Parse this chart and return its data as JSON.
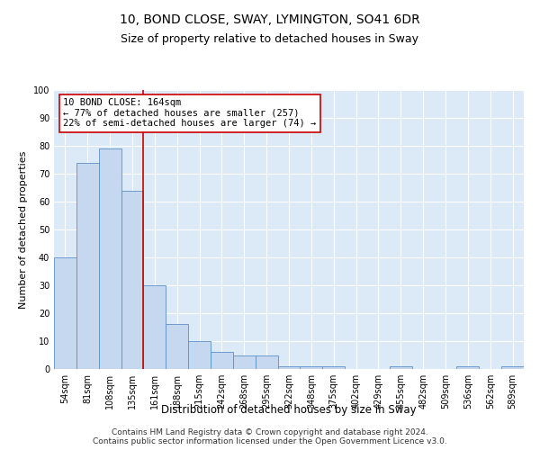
{
  "title": "10, BOND CLOSE, SWAY, LYMINGTON, SO41 6DR",
  "subtitle": "Size of property relative to detached houses in Sway",
  "xlabel": "Distribution of detached houses by size in Sway",
  "ylabel": "Number of detached properties",
  "bar_color": "#c5d8f0",
  "bar_edge_color": "#5b8fc9",
  "plot_bg_color": "#dce9f7",
  "categories": [
    "54sqm",
    "81sqm",
    "108sqm",
    "135sqm",
    "161sqm",
    "188sqm",
    "215sqm",
    "242sqm",
    "268sqm",
    "295sqm",
    "322sqm",
    "348sqm",
    "375sqm",
    "402sqm",
    "429sqm",
    "455sqm",
    "482sqm",
    "509sqm",
    "536sqm",
    "562sqm",
    "589sqm"
  ],
  "values": [
    40,
    74,
    79,
    64,
    30,
    16,
    10,
    6,
    5,
    5,
    1,
    1,
    1,
    0,
    0,
    1,
    0,
    0,
    1,
    0,
    1
  ],
  "vline_x_idx": 4,
  "vline_color": "#cc0000",
  "annotation_title": "10 BOND CLOSE: 164sqm",
  "annotation_line1": "← 77% of detached houses are smaller (257)",
  "annotation_line2": "22% of semi-detached houses are larger (74) →",
  "annotation_box_color": "#cc0000",
  "ylim": [
    0,
    100
  ],
  "yticks": [
    0,
    10,
    20,
    30,
    40,
    50,
    60,
    70,
    80,
    90,
    100
  ],
  "footer": "Contains HM Land Registry data © Crown copyright and database right 2024.\nContains public sector information licensed under the Open Government Licence v3.0.",
  "title_fontsize": 10,
  "subtitle_fontsize": 9,
  "xlabel_fontsize": 8.5,
  "ylabel_fontsize": 8,
  "tick_fontsize": 7,
  "annotation_fontsize": 7.5,
  "footer_fontsize": 6.5
}
